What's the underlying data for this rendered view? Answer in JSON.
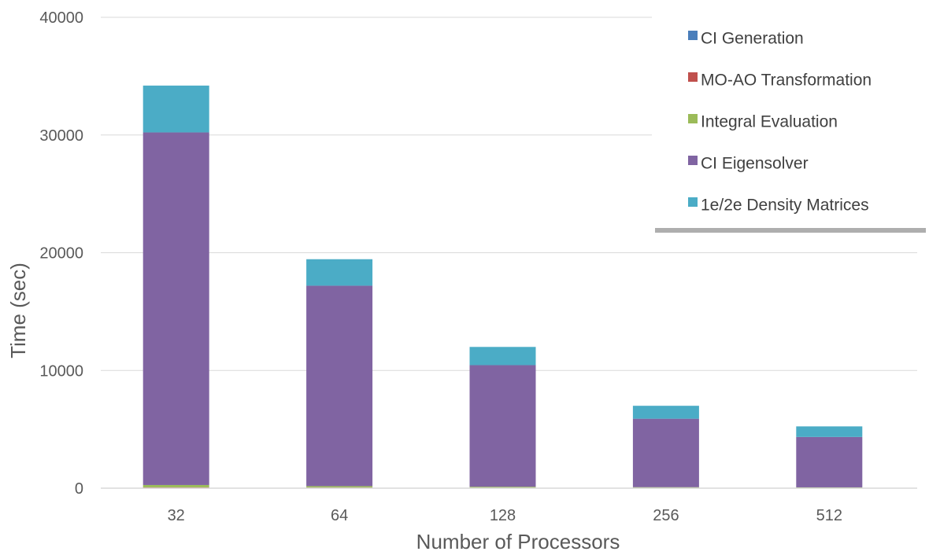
{
  "chart_data": {
    "type": "bar",
    "stacked": true,
    "categories": [
      "32",
      "64",
      "128",
      "256",
      "512"
    ],
    "series": [
      {
        "name": "CI Generation",
        "color": "#4A7EBB",
        "values": [
          20,
          15,
          10,
          10,
          10
        ]
      },
      {
        "name": "MO-AO Transformation",
        "color": "#C0504D",
        "values": [
          50,
          40,
          30,
          25,
          20
        ]
      },
      {
        "name": "Integral Evaluation",
        "color": "#9BBB59",
        "values": [
          200,
          120,
          80,
          50,
          40
        ]
      },
      {
        "name": "CI Eigensolver",
        "color": "#8064A2",
        "values": [
          29950,
          17025,
          10330,
          5815,
          4280
        ]
      },
      {
        "name": "1e/2e Density Matrices",
        "color": "#4BACC6",
        "values": [
          3980,
          2250,
          1550,
          1100,
          900
        ]
      }
    ],
    "xlabel": "Number of Processors",
    "ylabel": "Time (sec)",
    "ylim": [
      0,
      40000
    ],
    "yticks": [
      "0",
      "10000",
      "20000",
      "30000",
      "40000"
    ],
    "grid": true,
    "legend_position": "top-right"
  }
}
